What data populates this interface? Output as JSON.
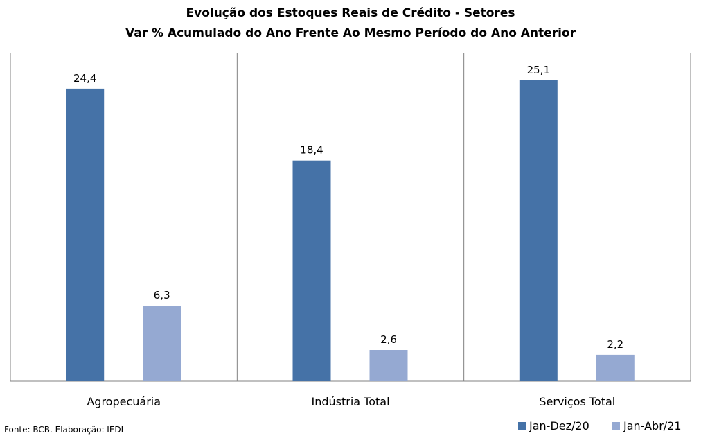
{
  "chart_data": {
    "type": "bar",
    "title": "Evolução dos Estoques Reais de Crédito - Setores",
    "subtitle": "Var % Acumulado do Ano Frente Ao Mesmo Período do Ano Anterior",
    "categories": [
      "Agropecuária",
      "Indústria Total",
      "Serviços Total"
    ],
    "series": [
      {
        "name": "Jan-Dez/20",
        "values": [
          24.4,
          18.4,
          25.1
        ],
        "labels": [
          "24,4",
          "18,4",
          "25,1"
        ],
        "color": "#4572a7"
      },
      {
        "name": "Jan-Abr/21",
        "values": [
          6.3,
          2.6,
          2.2
        ],
        "labels": [
          "6,3",
          "2,6",
          "2,2"
        ],
        "color": "#95a9d2"
      }
    ],
    "ylim": [
      0,
      27.4
    ],
    "grid": false,
    "legend": "bottom-right",
    "source": "Fonte: BCB. Elaboração: IEDI"
  }
}
